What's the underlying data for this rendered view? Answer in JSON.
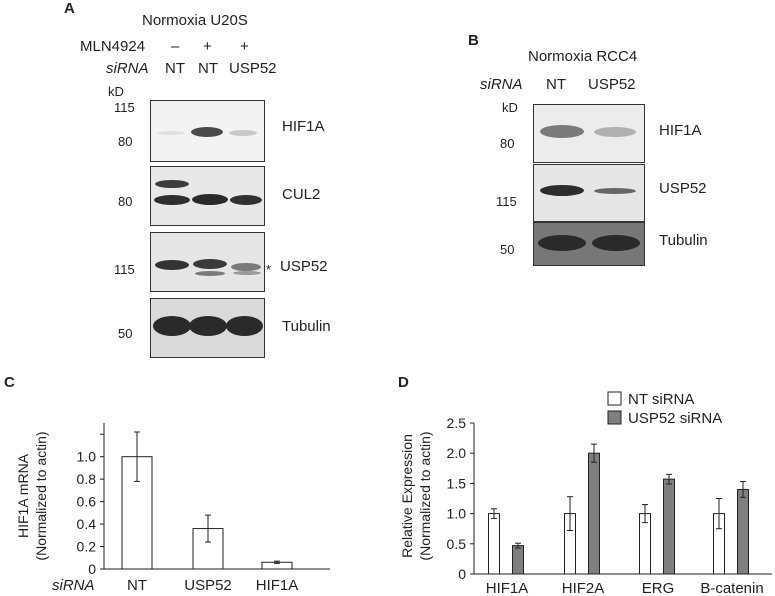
{
  "panelA": {
    "letter": "A",
    "title": "Normoxia U20S",
    "treatment_label": "MLN4924",
    "treatment_signs": [
      "–",
      "+",
      "+"
    ],
    "sirna_label": "siRNA",
    "sirna_lanes": [
      "NT",
      "NT",
      "USP52"
    ],
    "kd_label": "kD",
    "blots": [
      {
        "protein": "HIF1A",
        "markers": [
          "115",
          "80"
        ]
      },
      {
        "protein": "CUL2",
        "markers": [
          "80"
        ]
      },
      {
        "protein": "USP52",
        "markers": [
          "115"
        ],
        "annotation": "*"
      },
      {
        "protein": "Tubulin",
        "markers": [
          "50"
        ]
      }
    ]
  },
  "panelB": {
    "letter": "B",
    "title": "Normoxia RCC4",
    "sirna_label": "siRNA",
    "sirna_lanes": [
      "NT",
      "USP52"
    ],
    "kd_label": "kD",
    "blots": [
      {
        "protein": "HIF1A",
        "markers": [
          "80"
        ]
      },
      {
        "protein": "USP52",
        "markers": [
          "115"
        ]
      },
      {
        "protein": "Tubulin",
        "markers": [
          "50"
        ]
      }
    ]
  },
  "panelC": {
    "letter": "C",
    "sirna_label": "siRNA",
    "chart_data": {
      "type": "bar",
      "ylabel_line1": "HIF1A mRNA",
      "ylabel_line2": "(Normalized to actin)",
      "categories": [
        "NT",
        "USP52",
        "HIF1A"
      ],
      "values": [
        1.0,
        0.36,
        0.06
      ],
      "errors": [
        0.22,
        0.12,
        0.01
      ],
      "yticks": [
        "0",
        "0.2",
        "0.4",
        "0.6",
        "0.8",
        "1.0"
      ],
      "ylim": [
        0,
        1.3
      ],
      "bar_color": "#ffffff"
    }
  },
  "panelD": {
    "letter": "D",
    "chart_data": {
      "type": "bar",
      "ylabel_line1": "Relative Expression",
      "ylabel_line2": "(Normalized to actin)",
      "categories": [
        "HIF1A",
        "HIF2A",
        "ERG",
        "B-catenin"
      ],
      "series": [
        {
          "name": "NT siRNA",
          "values": [
            1.0,
            1.0,
            1.0,
            1.0
          ],
          "errors": [
            0.08,
            0.28,
            0.15,
            0.25
          ],
          "color": "#ffffff"
        },
        {
          "name": "USP52 siRNA",
          "values": [
            0.47,
            2.0,
            1.57,
            1.4
          ],
          "errors": [
            0.04,
            0.15,
            0.08,
            0.13
          ],
          "color": "#7f7f7f"
        }
      ],
      "yticks": [
        "0",
        "0.5",
        "1.0",
        "1.5",
        "2.0",
        "2.5"
      ],
      "ylim": [
        0,
        2.5
      ],
      "legend": "top-right"
    }
  }
}
